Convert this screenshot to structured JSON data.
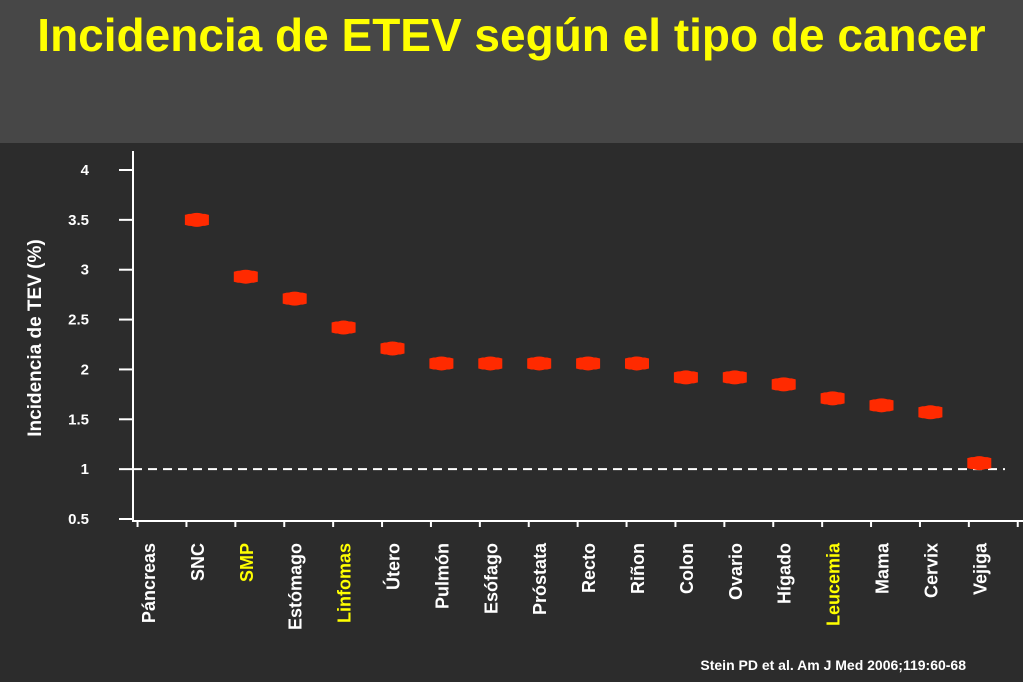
{
  "header": {
    "title": "Incidencia de ETEV según el tipo de cancer"
  },
  "footer": {
    "citation": "Stein PD et al. Am J Med 2006;119:60-68"
  },
  "colors": {
    "background": "#2c2c2c",
    "title_bar": "#474747",
    "title_text": "#ffff00",
    "marker": "#ff2a00",
    "axis": "#ffffff",
    "highlight_label": "#ffff00"
  },
  "chart_data": {
    "type": "scatter",
    "title": "Incidencia de ETEV según el tipo de cancer",
    "xlabel": "",
    "ylabel": "Incidencia de TEV (%)",
    "ylim": [
      0.5,
      4
    ],
    "yticks": [
      "0.5",
      "1",
      "1.5",
      "2",
      "2.5",
      "3",
      "3.5",
      "4"
    ],
    "grid": false,
    "reference_line": {
      "y": 1,
      "style": "dashed"
    },
    "categories": [
      "Páncreas",
      "SNC",
      "SMP",
      "Estómago",
      "Linfomas",
      "Útero",
      "Pulmón",
      "Esófago",
      "Próstata",
      "Recto",
      "Riñon",
      "Colon",
      "Ovario",
      "Hígado",
      "Leucemia",
      "Mama",
      "Cervix",
      "Vejiga"
    ],
    "highlighted_categories": [
      "SMP",
      "Linfomas",
      "Leucemia"
    ],
    "series": [
      {
        "values": [
          null,
          3.5,
          2.93,
          2.71,
          2.42,
          2.21,
          2.06,
          2.06,
          2.06,
          2.06,
          2.06,
          1.92,
          1.92,
          1.85,
          1.71,
          1.64,
          1.57,
          1.06
        ]
      }
    ]
  }
}
